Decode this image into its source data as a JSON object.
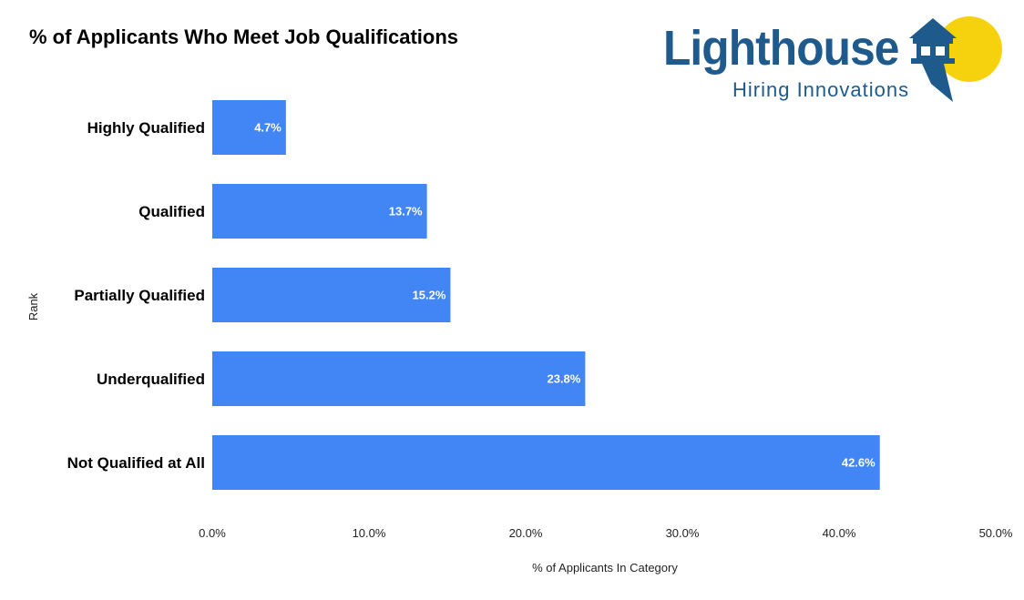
{
  "chart_data": {
    "type": "bar",
    "orientation": "horizontal",
    "title": "% of Applicants Who Meet Job Qualifications",
    "xlabel": "% of Applicants In Category",
    "ylabel": "Rank",
    "categories": [
      "Highly Qualified",
      "Qualified",
      "Partially Qualified",
      "Underqualified",
      "Not Qualified at All"
    ],
    "values": [
      4.7,
      13.7,
      15.2,
      23.8,
      42.6
    ],
    "data_labels": [
      "4.7%",
      "13.7%",
      "15.2%",
      "23.8%",
      "42.6%"
    ],
    "xlim": [
      0,
      50
    ],
    "x_ticks": [
      0,
      10,
      20,
      30,
      40,
      50
    ],
    "x_tick_labels": [
      "0.0%",
      "10.0%",
      "20.0%",
      "30.0%",
      "40.0%",
      "50.0%"
    ],
    "grid": false,
    "bar_color": "#4285f4",
    "label_color": "#ffffff"
  },
  "logo": {
    "name": "Lighthouse",
    "tagline": "Hiring Innovations",
    "primary_color": "#1e5a8c",
    "sun_color": "#f6d20e"
  }
}
